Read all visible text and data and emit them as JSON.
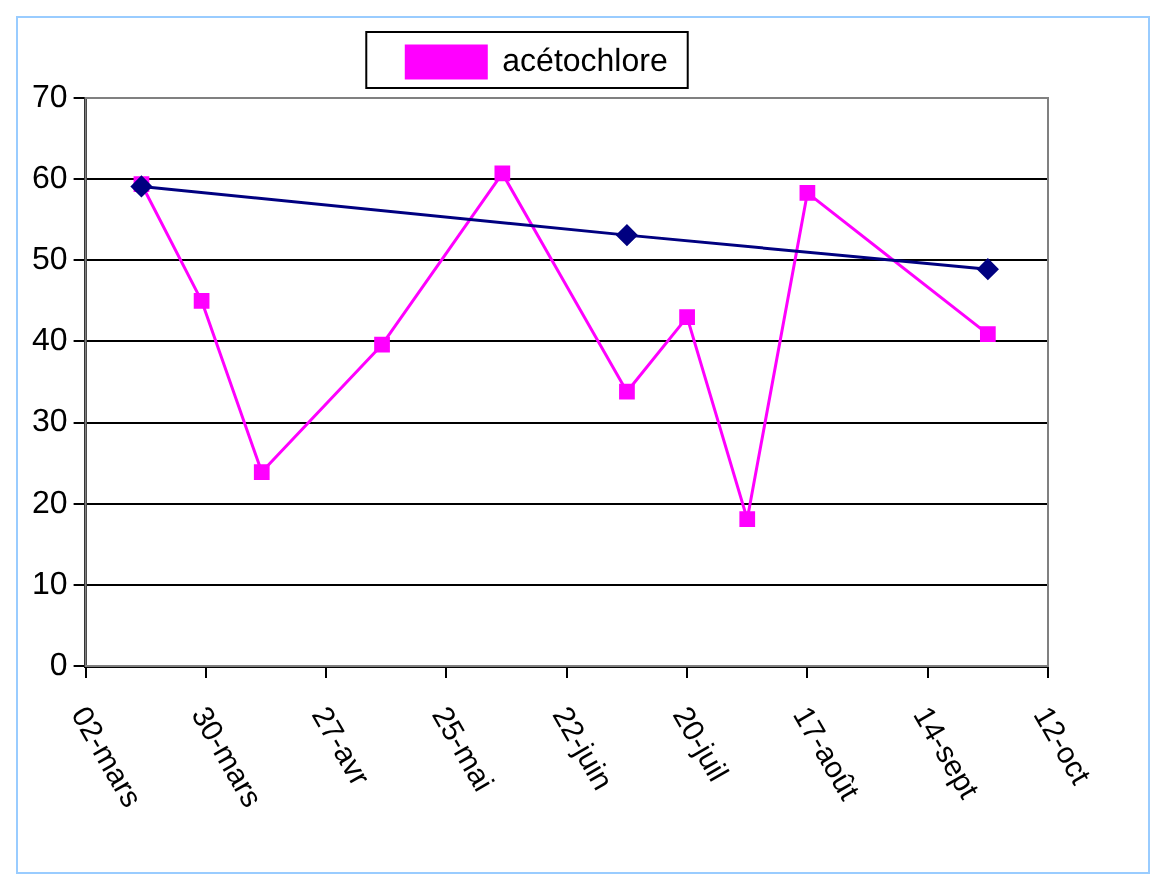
{
  "chart_data": {
    "type": "line",
    "legend": "top",
    "grid": "y",
    "xlim": [
      "--03-02",
      "--10-12"
    ],
    "xticks": [
      {
        "value": "--03-02",
        "label": "02-mars"
      },
      {
        "value": "--03-30",
        "label": "30-mars"
      },
      {
        "value": "--04-27",
        "label": "27-avr"
      },
      {
        "value": "--05-25",
        "label": "25-mai"
      },
      {
        "value": "--06-22",
        "label": "22-juin"
      },
      {
        "value": "--07-20",
        "label": "20-juil"
      },
      {
        "value": "--08-17",
        "label": "17-août"
      },
      {
        "value": "--09-14",
        "label": "14-sept"
      },
      {
        "value": "--10-12",
        "label": "12-oct"
      }
    ],
    "ylim": [
      0,
      70
    ],
    "yticks": [
      0,
      10,
      20,
      30,
      40,
      50,
      60,
      70
    ],
    "series": [
      {
        "name": "acétochlore",
        "color": "#ff00ff",
        "marker": "square",
        "x": [
          "--03-15",
          "--03-29",
          "--04-12",
          "--05-10",
          "--06-07",
          "--07-06",
          "--07-20",
          "--08-03",
          "--08-17",
          "--09-28"
        ],
        "values": [
          59.4,
          45,
          23.9,
          39.6,
          60.7,
          33.8,
          43,
          18.1,
          58.3,
          40.9
        ]
      },
      {
        "color": "#000080",
        "marker": "diamond",
        "x": [
          "--03-15",
          "--07-06",
          "--09-28"
        ],
        "values": [
          59.1,
          53.1,
          48.9
        ]
      }
    ]
  }
}
